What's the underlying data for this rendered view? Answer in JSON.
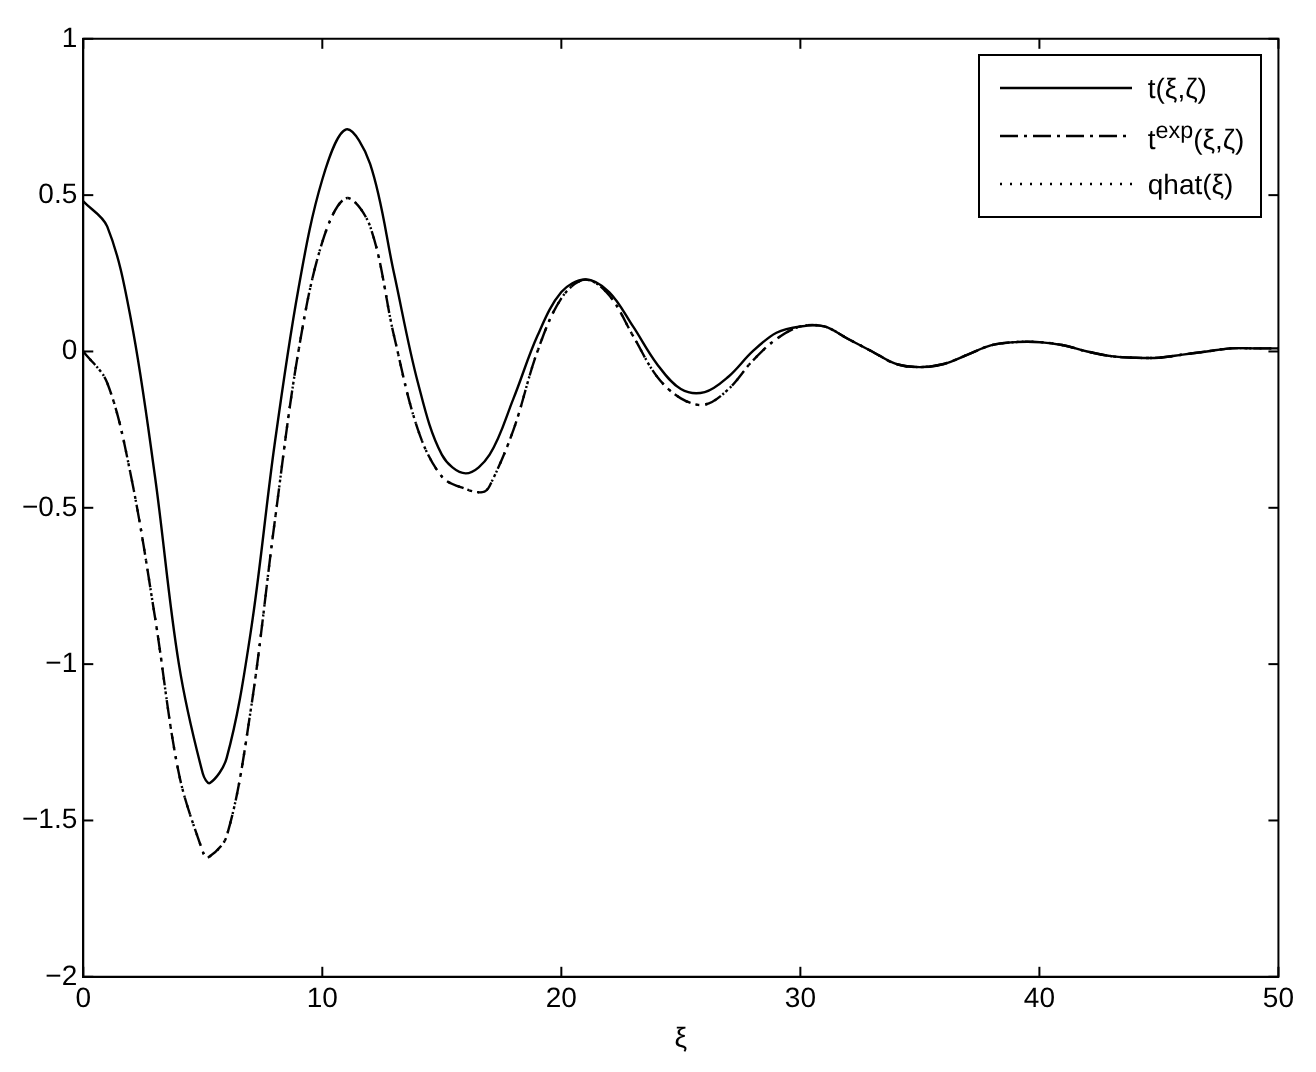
{
  "chart_data": {
    "type": "line",
    "xlabel": "ξ",
    "xlim": [
      0,
      50
    ],
    "xticks": [
      0,
      10,
      20,
      30,
      40,
      50
    ],
    "ylim": [
      -2,
      1
    ],
    "yticks": [
      -2,
      -1.5,
      -1,
      -0.5,
      0,
      0.5,
      1
    ],
    "grid": false,
    "legend": "top right",
    "marker": "none",
    "series": [
      {
        "name": "t(ξ,ζ)",
        "color": "#000000",
        "line_style": "solid",
        "x": [
          0,
          1,
          2,
          3,
          4,
          5,
          5.3,
          6,
          7,
          8,
          9,
          10,
          11,
          12,
          13,
          14,
          15,
          16,
          17,
          18,
          19,
          20,
          21,
          22,
          23,
          24,
          25,
          26,
          27,
          28,
          29,
          30,
          31,
          32,
          33,
          34,
          35,
          36,
          37,
          38,
          39,
          40,
          41,
          42,
          43,
          44,
          45,
          46,
          47,
          48,
          49,
          50
        ],
        "values": [
          0.48,
          0.4,
          0.1,
          -0.4,
          -1.0,
          -1.35,
          -1.38,
          -1.3,
          -0.9,
          -0.3,
          0.2,
          0.55,
          0.71,
          0.6,
          0.25,
          -0.1,
          -0.33,
          -0.39,
          -0.33,
          -0.15,
          0.05,
          0.19,
          0.23,
          0.19,
          0.08,
          -0.04,
          -0.12,
          -0.13,
          -0.08,
          0.0,
          0.06,
          0.08,
          0.08,
          0.04,
          0.0,
          -0.04,
          -0.05,
          -0.04,
          -0.01,
          0.02,
          0.03,
          0.03,
          0.02,
          0.0,
          -0.015,
          -0.02,
          -0.02,
          -0.01,
          0.0,
          0.01,
          0.01,
          0.01
        ]
      },
      {
        "name": "t$^{exp}$(ξ,ζ)",
        "color": "#000000",
        "line_style": "dashed",
        "x": [
          0,
          1,
          2,
          3,
          4,
          5,
          5.2,
          6,
          7,
          8,
          9,
          10,
          11,
          12,
          13,
          14,
          15,
          16,
          16.7,
          17,
          18,
          19,
          20,
          21,
          22,
          23,
          24,
          25,
          26,
          27,
          28,
          29,
          30,
          31,
          32,
          33,
          34,
          35,
          36,
          37,
          38,
          39,
          40,
          41,
          42,
          43,
          44,
          45,
          46,
          47,
          48,
          49,
          50
        ],
        "values": [
          0,
          -0.1,
          -0.4,
          -0.85,
          -1.35,
          -1.6,
          -1.62,
          -1.55,
          -1.15,
          -0.55,
          0.0,
          0.35,
          0.49,
          0.4,
          0.05,
          -0.25,
          -0.4,
          -0.44,
          -0.45,
          -0.43,
          -0.25,
          0.0,
          0.17,
          0.23,
          0.18,
          0.05,
          -0.08,
          -0.15,
          -0.17,
          -0.12,
          -0.03,
          0.04,
          0.08,
          0.08,
          0.04,
          0.0,
          -0.04,
          -0.05,
          -0.04,
          -0.01,
          0.02,
          0.03,
          0.03,
          0.02,
          0.0,
          -0.015,
          -0.02,
          -0.02,
          -0.01,
          0.0,
          0.01,
          0.01,
          0.01
        ]
      },
      {
        "name": "qhat(ξ)",
        "color": "#000000",
        "line_style": "dotted",
        "x": [
          0,
          1,
          2,
          3,
          4,
          5,
          5.2,
          6,
          7,
          8,
          9,
          10,
          11,
          12,
          13,
          14,
          15,
          16,
          16.7,
          17,
          18,
          19,
          20,
          21,
          22,
          23,
          24,
          25,
          26,
          27,
          28,
          29,
          30,
          31,
          32,
          33,
          34,
          35,
          36,
          37,
          38,
          39,
          40,
          41,
          42,
          43,
          44,
          45,
          46,
          47,
          48,
          49,
          50
        ],
        "values": [
          0,
          -0.1,
          -0.4,
          -0.85,
          -1.35,
          -1.6,
          -1.62,
          -1.55,
          -1.15,
          -0.55,
          0.0,
          0.35,
          0.49,
          0.4,
          0.05,
          -0.25,
          -0.4,
          -0.44,
          -0.45,
          -0.43,
          -0.25,
          0.0,
          0.17,
          0.23,
          0.18,
          0.05,
          -0.08,
          -0.15,
          -0.17,
          -0.12,
          -0.03,
          0.04,
          0.08,
          0.08,
          0.04,
          0.0,
          -0.04,
          -0.05,
          -0.04,
          -0.01,
          0.02,
          0.03,
          0.03,
          0.02,
          0.0,
          -0.015,
          -0.02,
          -0.02,
          -0.01,
          0.0,
          0.01,
          0.01,
          0.01
        ]
      }
    ]
  }
}
